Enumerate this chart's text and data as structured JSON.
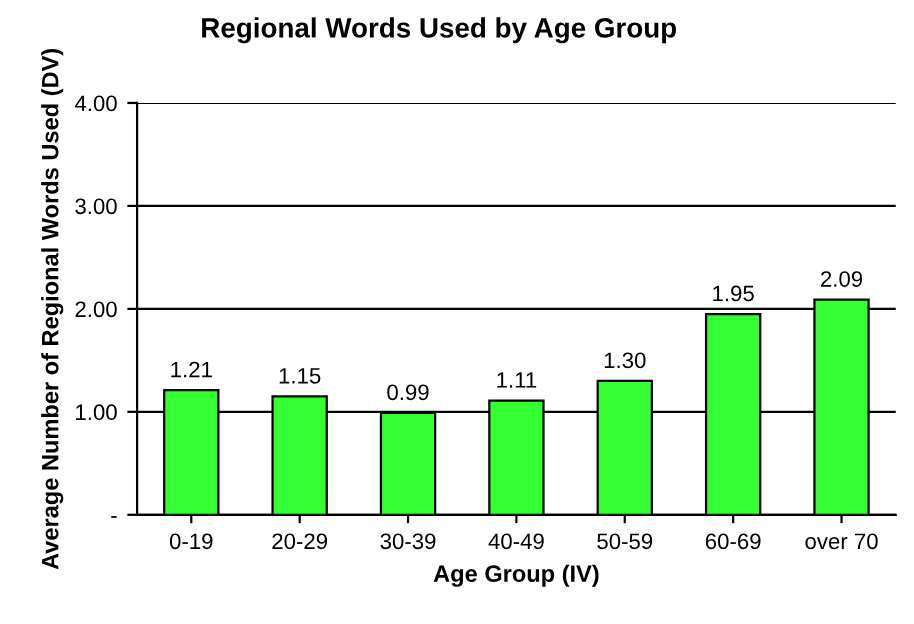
{
  "chart_data": {
    "type": "bar",
    "title": "Regional Words Used by Age Group",
    "xlabel": "Age Group (IV)",
    "ylabel": "Average Number of Regional Words Used (DV)",
    "categories": [
      "0-19",
      "20-29",
      "30-39",
      "40-49",
      "50-59",
      "60-69",
      "over 70"
    ],
    "values": [
      1.21,
      1.15,
      0.99,
      1.11,
      1.3,
      1.95,
      2.09
    ],
    "value_labels": [
      "1.21",
      "1.15",
      "0.99",
      "1.11",
      "1.30",
      "1.95",
      "2.09"
    ],
    "color": "#33ff33",
    "ylim": [
      0,
      4
    ],
    "yticks": [
      {
        "value": 0,
        "label": "-"
      },
      {
        "value": 1,
        "label": "1.00"
      },
      {
        "value": 2,
        "label": "2.00"
      },
      {
        "value": 3,
        "label": "3.00"
      },
      {
        "value": 4,
        "label": "4.00"
      }
    ],
    "grid": "y",
    "legend": false
  }
}
